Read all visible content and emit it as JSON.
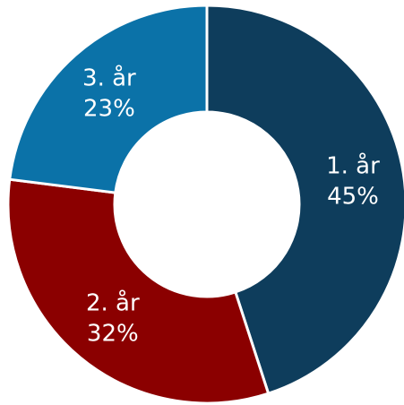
{
  "chart_data": {
    "type": "donut",
    "categories": [
      "1. år",
      "2. år",
      "3. år"
    ],
    "values": [
      45,
      32,
      23
    ],
    "value_labels": [
      "45%",
      "32%",
      "23%"
    ],
    "colors": [
      "#0e3d5c",
      "#8b0000",
      "#0b72a8"
    ]
  }
}
